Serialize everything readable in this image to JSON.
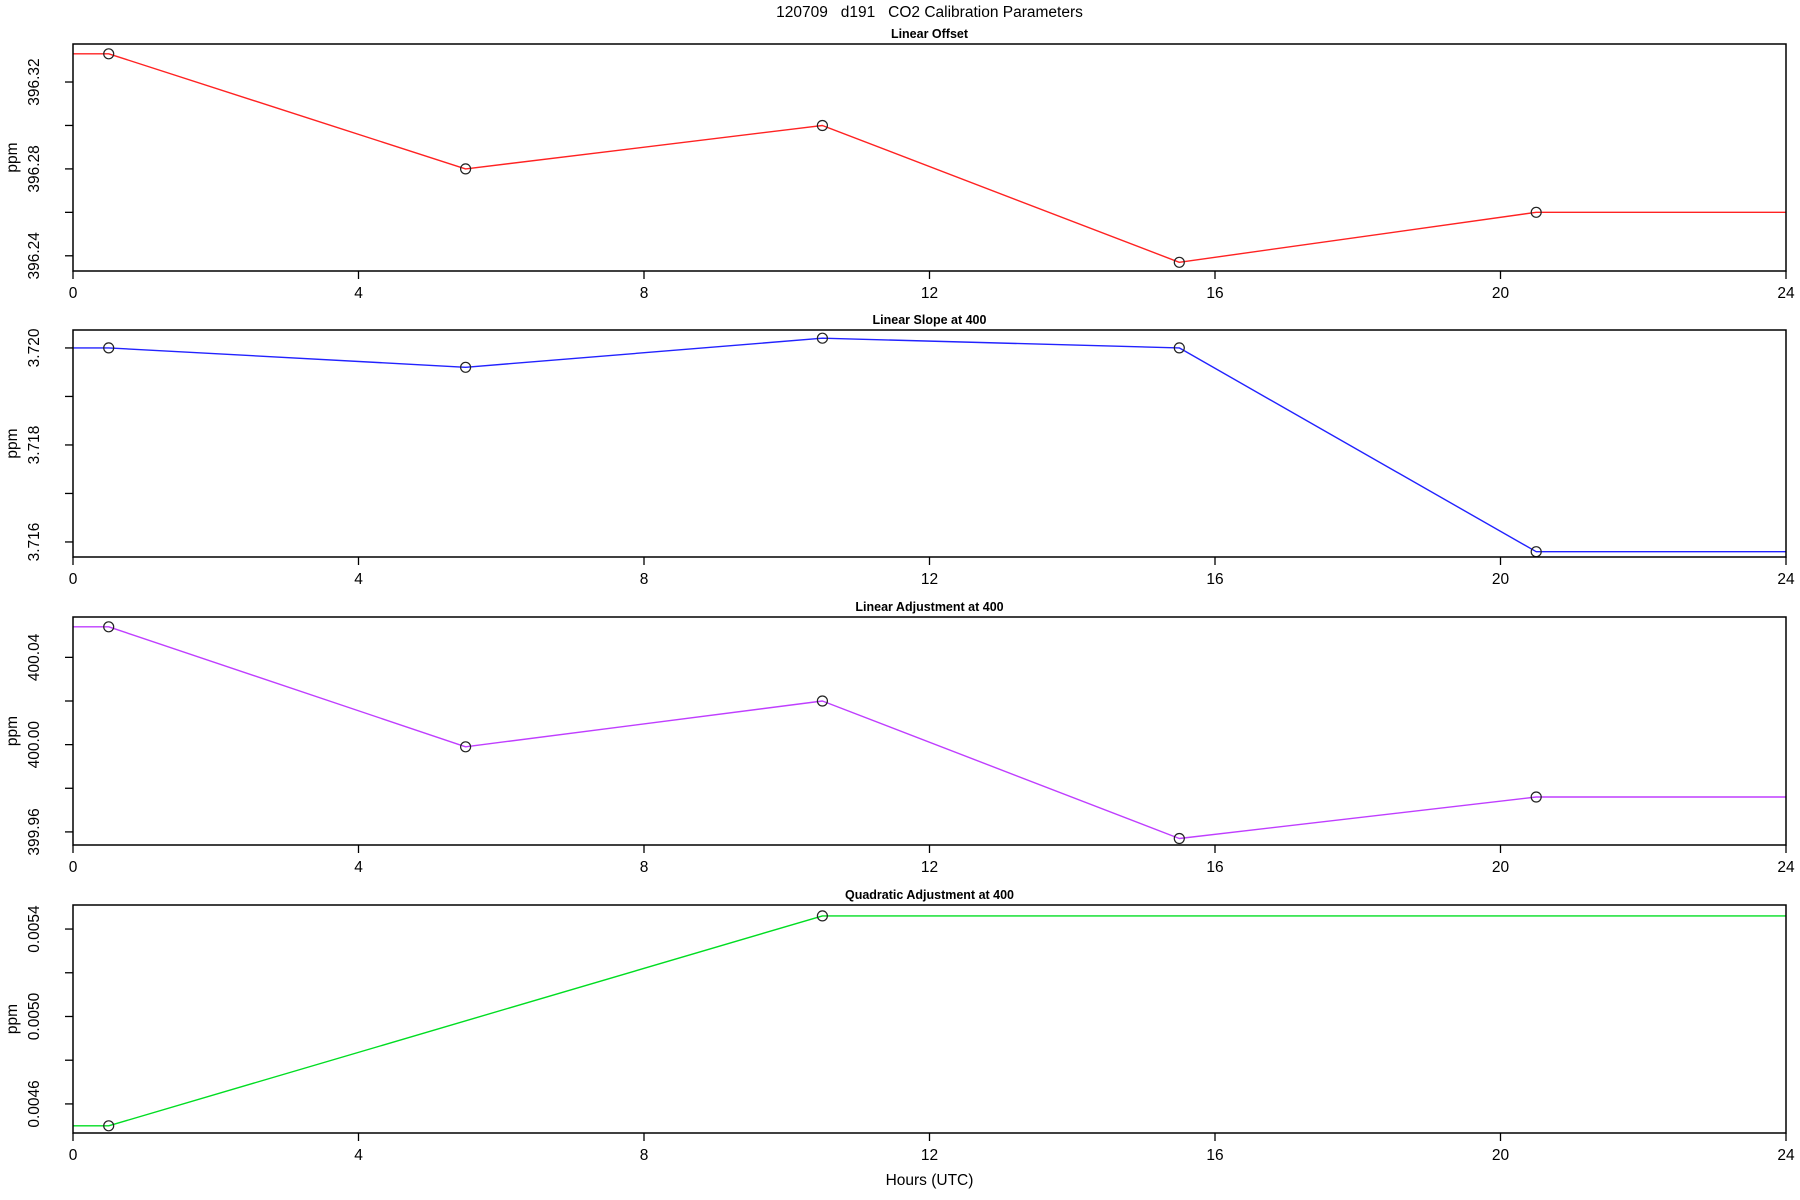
{
  "title": "120709   d191   CO2 Calibration Parameters",
  "xlabel": "Hours (UTC)",
  "x_axis": {
    "min": 0,
    "max": 24,
    "ticks": [
      0,
      4,
      8,
      12,
      16,
      20,
      24
    ],
    "tick_labels": [
      "0",
      "4",
      "8",
      "12",
      "16",
      "20",
      "24"
    ]
  },
  "chart_data": [
    {
      "type": "line",
      "title": "Linear Offset",
      "ylabel": "ppm",
      "color": "#ff2222",
      "marker": "open-circle",
      "x": [
        0.5,
        5.5,
        10.5,
        15.5,
        20.5
      ],
      "y": [
        396.333,
        396.28,
        396.3,
        396.237,
        396.26
      ],
      "line_extends_to_x_range": true,
      "ylim": [
        396.233,
        396.3375
      ],
      "yticks": [
        396.24,
        396.26,
        396.28,
        396.3,
        396.32
      ],
      "ytick_labels": [
        "396.24",
        "",
        "396.28",
        "",
        "396.32"
      ]
    },
    {
      "type": "line",
      "title": "Linear Slope at 400",
      "ylabel": "ppm",
      "color": "#2222ff",
      "marker": "open-circle",
      "x": [
        0.5,
        5.5,
        10.5,
        15.5,
        20.5
      ],
      "y": [
        3.72,
        3.7196,
        3.7202,
        3.72,
        3.7158
      ],
      "line_extends_to_x_range": true,
      "ylim": [
        3.71569,
        3.72037
      ],
      "yticks": [
        3.716,
        3.717,
        3.718,
        3.719,
        3.72
      ],
      "ytick_labels": [
        "3.716",
        "",
        "3.718",
        "",
        "3.720"
      ]
    },
    {
      "type": "line",
      "title": "Linear Adjustment at 400",
      "ylabel": "ppm",
      "color": "#bf3eff",
      "marker": "open-circle",
      "x": [
        0.5,
        5.5,
        10.5,
        15.5,
        20.5
      ],
      "y": [
        400.054,
        399.999,
        400.02,
        399.957,
        399.976
      ],
      "line_extends_to_x_range": true,
      "ylim": [
        399.954,
        400.0585
      ],
      "yticks": [
        399.96,
        399.98,
        400.0,
        400.02,
        400.04
      ],
      "ytick_labels": [
        "399.96",
        "",
        "400.00",
        "",
        "400.04"
      ]
    },
    {
      "type": "line",
      "title": "Quadratic Adjustment at 400",
      "ylabel": "ppm",
      "color": "#00dd22",
      "marker": "open-circle",
      "x": [
        0.5,
        10.5
      ],
      "y": [
        0.0045,
        0.00546
      ],
      "line_extends_to_x_range": true,
      "ylim": [
        0.004467,
        0.00551
      ],
      "yticks": [
        0.0046,
        0.0048,
        0.005,
        0.0052,
        0.0054
      ],
      "ytick_labels": [
        "0.0046",
        "",
        "0.0050",
        "",
        "0.0054"
      ]
    }
  ]
}
